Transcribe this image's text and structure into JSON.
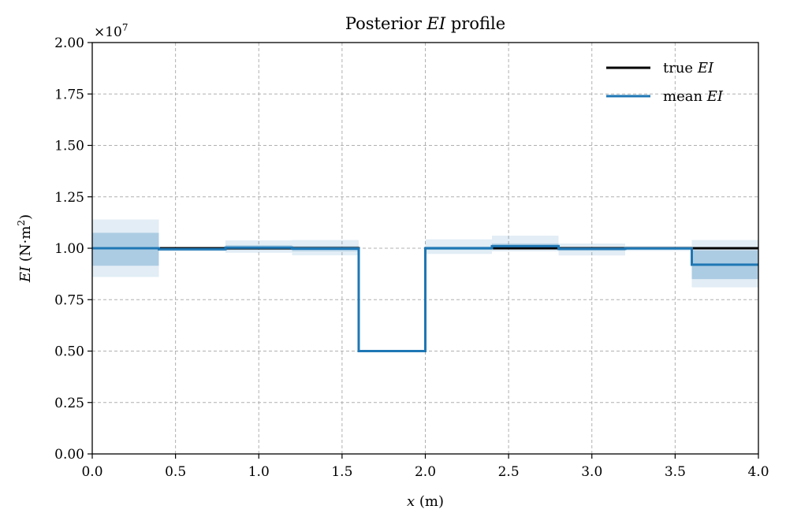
{
  "chart_data": {
    "type": "line",
    "title_prefix": "Posterior ",
    "title_symbol": "EI",
    "title_suffix": " profile",
    "xlabel_symbol": "x",
    "xlabel_unit": " (m)",
    "ylabel_symbol": "EI",
    "ylabel_unit_prefix": " (N·m",
    "ylabel_unit_exp": "2",
    "ylabel_unit_suffix": ")",
    "y_multiplier_base": "×10",
    "y_multiplier_exp": "7",
    "xlim": [
      0,
      4
    ],
    "ylim": [
      0,
      20000000
    ],
    "xticks": [
      "0.0",
      "0.5",
      "1.0",
      "1.5",
      "2.0",
      "2.5",
      "3.0",
      "3.5",
      "4.0"
    ],
    "yticks": [
      "0.00",
      "0.25",
      "0.50",
      "0.75",
      "1.00",
      "1.25",
      "1.50",
      "1.75",
      "2.00"
    ],
    "grid": true,
    "legend_position": "top-right",
    "colors": {
      "true": "#000000",
      "mean": "#1f77b4",
      "band_inner": "#1f77b4",
      "band_outer": "#1f77b4",
      "grid": "#b0b0b0"
    },
    "segment_edges": [
      0,
      0.4,
      0.8,
      1.2,
      1.6,
      2.0,
      2.4,
      2.8,
      3.2,
      3.6,
      4.0
    ],
    "series": [
      {
        "name_prefix": "true ",
        "name_symbol": "EI",
        "kind": "step",
        "values": [
          10000000,
          10000000,
          10000000,
          10000000,
          5000000,
          10000000,
          10000000,
          10000000,
          10000000,
          10000000
        ]
      },
      {
        "name_prefix": "mean ",
        "name_symbol": "EI",
        "kind": "step",
        "values": [
          10000000,
          9950000,
          10030000,
          9980000,
          5000000,
          10000000,
          10100000,
          9970000,
          9990000,
          9200000
        ]
      }
    ],
    "bands_inner": [
      [
        9150000,
        10750000
      ],
      [
        9900000,
        10000000
      ],
      [
        9920000,
        10140000
      ],
      [
        9860000,
        10100000
      ],
      [
        4980000,
        5020000
      ],
      [
        9920000,
        10080000
      ],
      [
        9980000,
        10220000
      ],
      [
        9880000,
        10060000
      ],
      [
        9940000,
        10040000
      ],
      [
        8500000,
        9900000
      ]
    ],
    "bands_outer": [
      [
        8600000,
        11400000
      ],
      [
        9850000,
        10050000
      ],
      [
        9780000,
        10380000
      ],
      [
        9660000,
        10400000
      ],
      [
        4950000,
        5050000
      ],
      [
        9720000,
        10430000
      ],
      [
        9850000,
        10610000
      ],
      [
        9650000,
        10230000
      ],
      [
        9870000,
        10110000
      ],
      [
        8100000,
        10400000
      ]
    ]
  }
}
